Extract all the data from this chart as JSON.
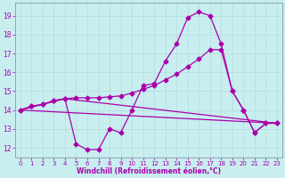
{
  "xlabel": "Windchill (Refroidissement éolien,°C)",
  "bg_color": "#c8eef0",
  "line_color": "#aa00aa",
  "grid_color": "#b8dfe0",
  "xlim": [
    -0.5,
    23.5
  ],
  "ylim": [
    11.5,
    19.7
  ],
  "xticks": [
    0,
    1,
    2,
    3,
    4,
    5,
    6,
    7,
    8,
    9,
    10,
    11,
    12,
    13,
    14,
    15,
    16,
    17,
    18,
    19,
    20,
    21,
    22,
    23
  ],
  "yticks": [
    12,
    13,
    14,
    15,
    16,
    17,
    18,
    19
  ],
  "line1_x": [
    0,
    1,
    2,
    3,
    4,
    5,
    6,
    7,
    8,
    9,
    10,
    11,
    12,
    13,
    14,
    15,
    16,
    17,
    18,
    19,
    20,
    21,
    22,
    23
  ],
  "line1_y": [
    14.0,
    14.2,
    14.3,
    14.5,
    14.6,
    12.2,
    11.9,
    11.9,
    13.0,
    12.8,
    14.0,
    15.3,
    15.4,
    16.6,
    17.5,
    18.9,
    19.2,
    19.0,
    17.5,
    15.0,
    14.0,
    12.8,
    13.3,
    13.3
  ],
  "line2_x": [
    0,
    1,
    2,
    3,
    4,
    5,
    6,
    7,
    8,
    9,
    10,
    11,
    12,
    13,
    14,
    15,
    16,
    17,
    18,
    19,
    20,
    21,
    22,
    23
  ],
  "line2_y": [
    14.0,
    14.2,
    14.3,
    14.5,
    14.6,
    14.65,
    14.65,
    14.65,
    14.7,
    14.75,
    14.9,
    15.1,
    15.3,
    15.6,
    15.9,
    16.3,
    16.7,
    17.2,
    17.2,
    15.0,
    14.0,
    12.8,
    13.3,
    13.3
  ],
  "line3_x": [
    0,
    23
  ],
  "line3_y": [
    14.0,
    13.3
  ],
  "line4_x": [
    0,
    4,
    23
  ],
  "line4_y": [
    14.0,
    14.6,
    13.3
  ]
}
